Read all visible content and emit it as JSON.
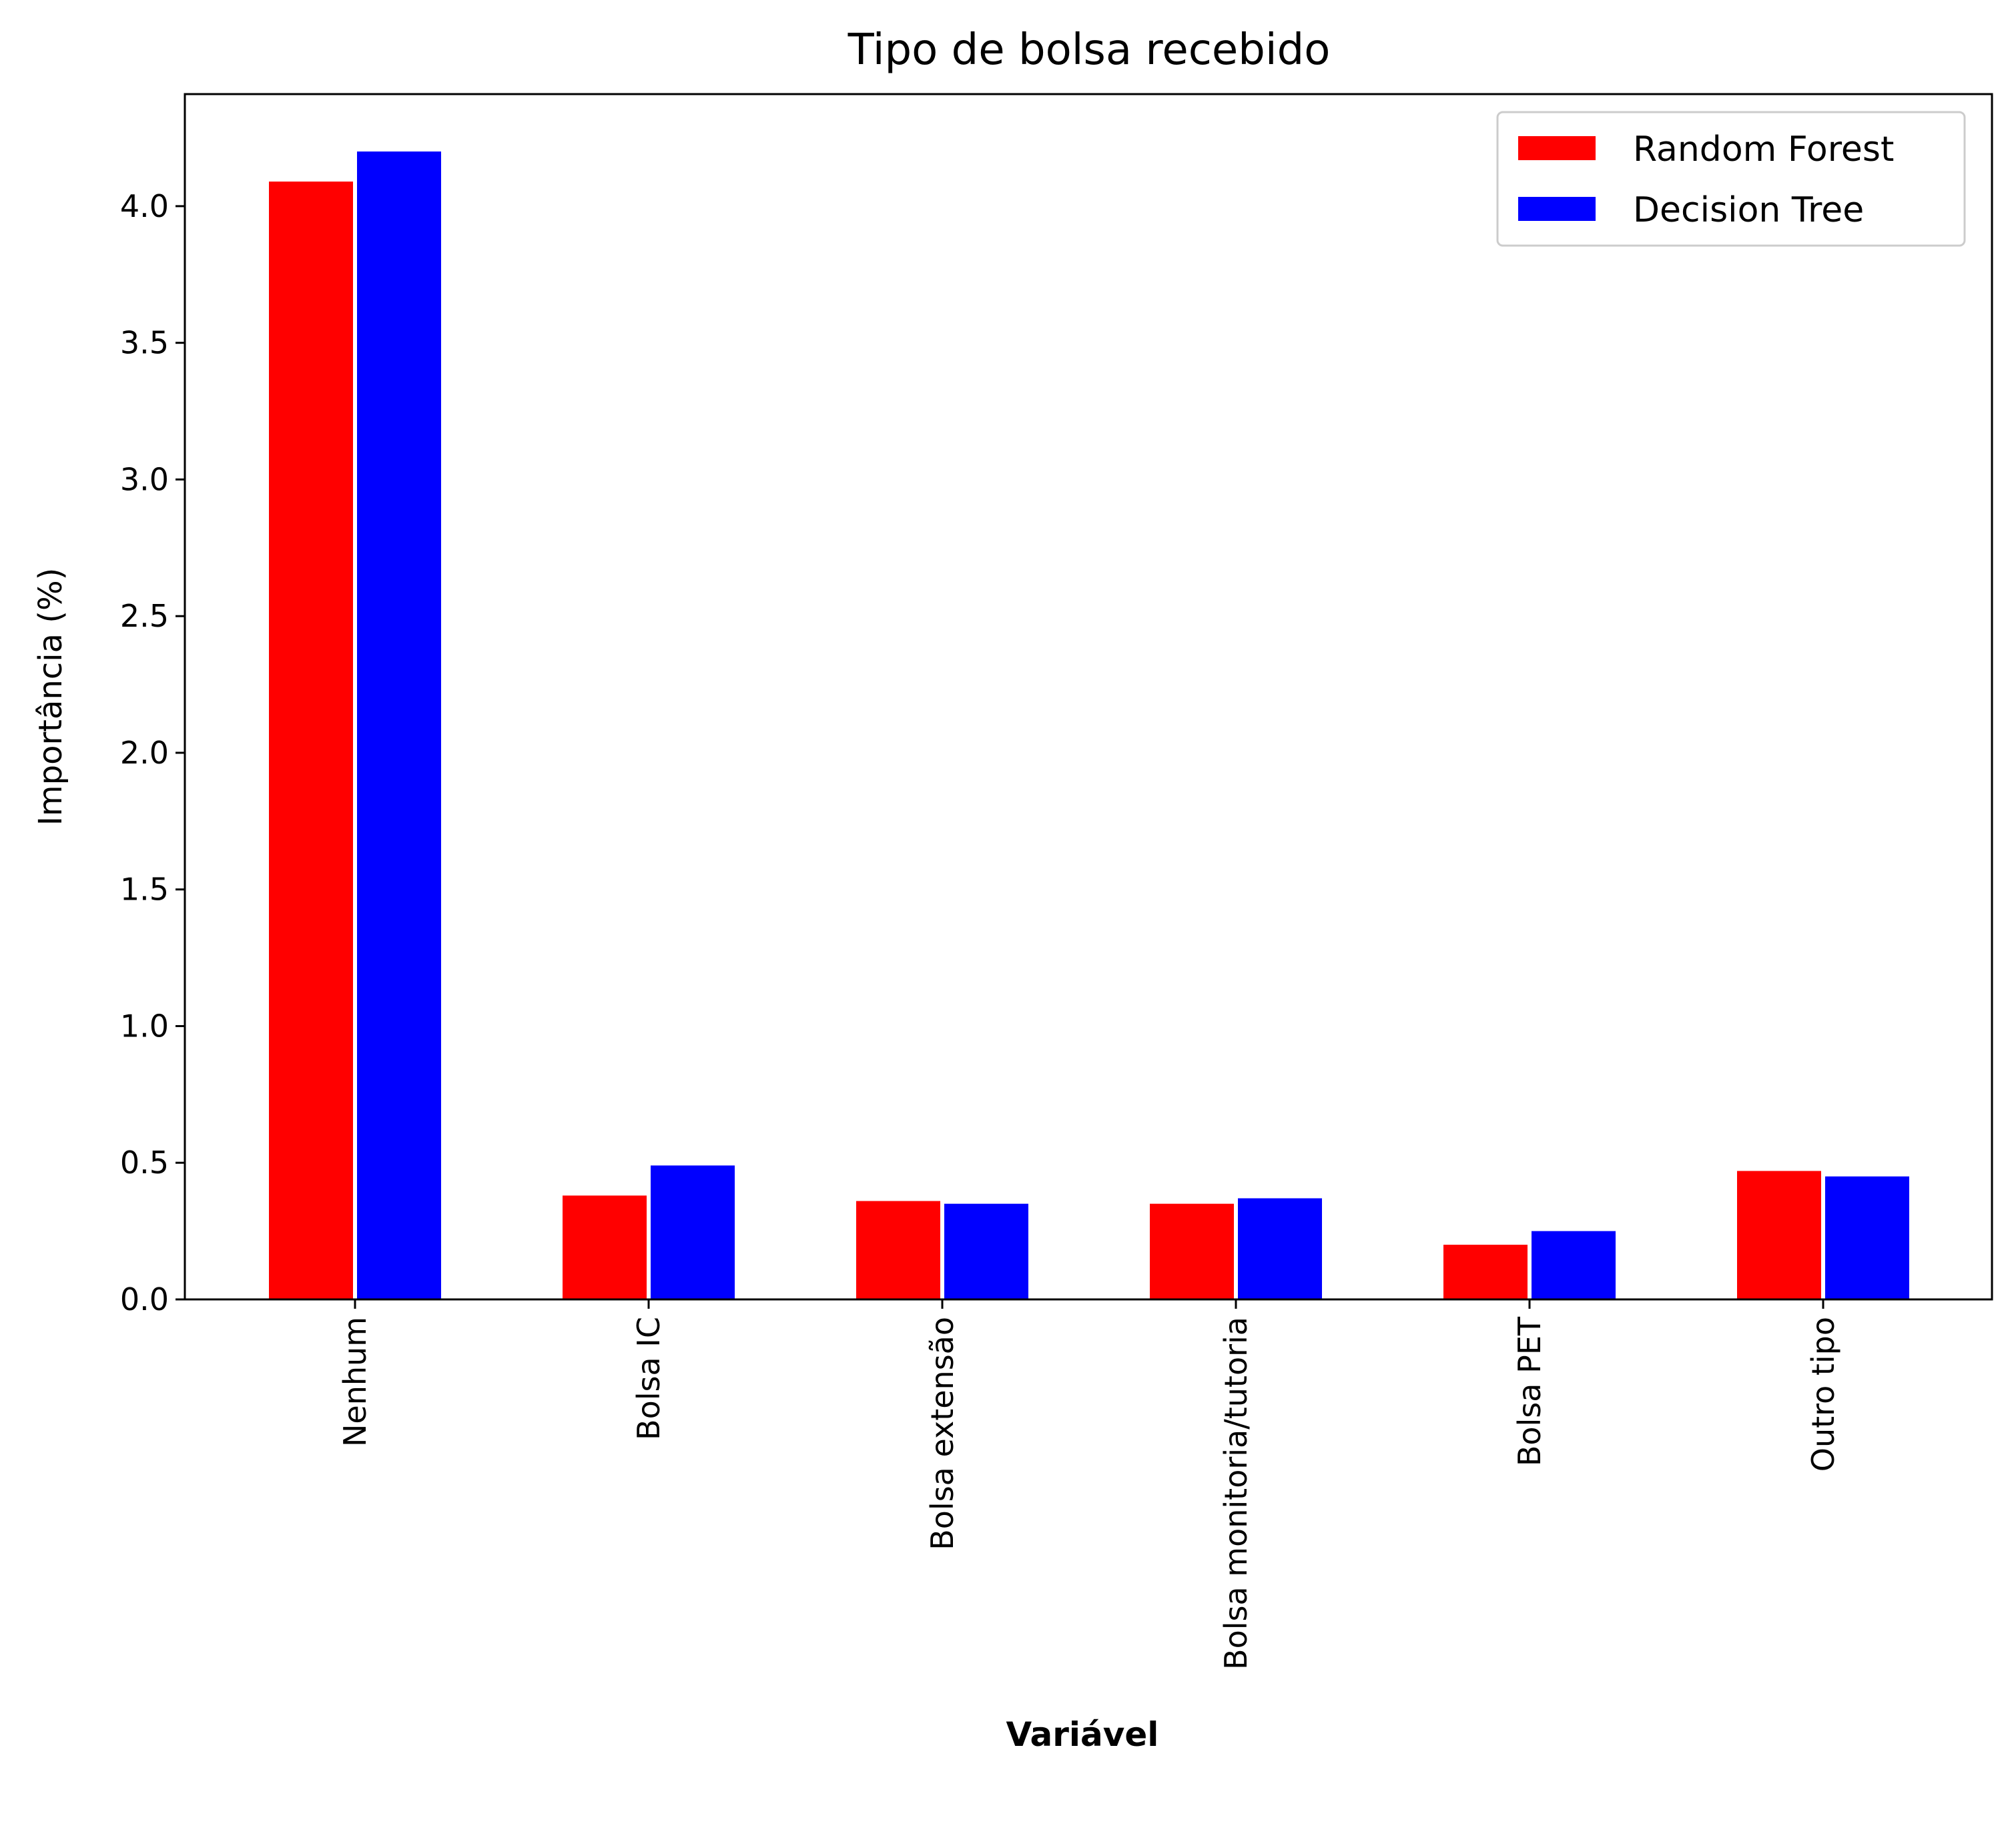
{
  "chart_data": {
    "type": "bar",
    "title": "Tipo de bolsa recebido",
    "xlabel": "Variável",
    "ylabel": "Importância (%)",
    "categories": [
      "Nenhum",
      "Bolsa IC",
      "Bolsa extensão",
      "Bolsa monitoria/tutoria",
      "Bolsa PET",
      "Outro tipo"
    ],
    "series": [
      {
        "name": "Random Forest",
        "color": "#ff0000",
        "values": [
          4.09,
          0.38,
          0.36,
          0.35,
          0.2,
          0.47
        ]
      },
      {
        "name": "Decision Tree",
        "color": "#0000ff",
        "values": [
          4.2,
          0.49,
          0.35,
          0.37,
          0.25,
          0.45
        ]
      }
    ],
    "ylim": [
      0,
      4.41
    ],
    "yticks": [
      0.0,
      0.5,
      1.0,
      1.5,
      2.0,
      2.5,
      3.0,
      3.5,
      4.0
    ],
    "ytick_labels": [
      "0.0",
      "0.5",
      "1.0",
      "1.5",
      "2.0",
      "2.5",
      "3.0",
      "3.5",
      "4.0"
    ],
    "legend_position": "top-right",
    "grid": false
  }
}
